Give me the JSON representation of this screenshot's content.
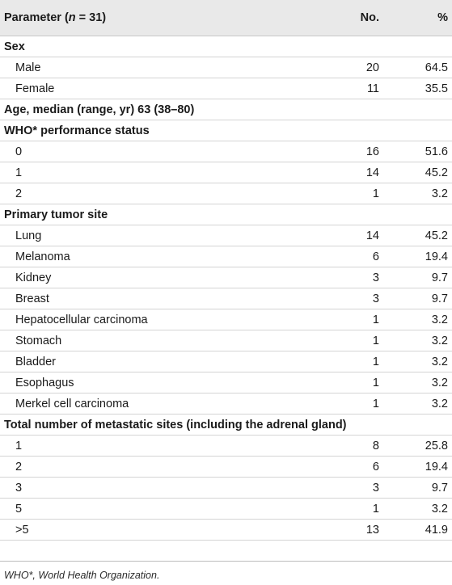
{
  "header": {
    "param_prefix": "Parameter (",
    "param_n": "n",
    "param_suffix": " = 31)",
    "no": "No.",
    "pct": "%"
  },
  "rows": [
    {
      "type": "section",
      "label": "Sex",
      "no": "",
      "pct": ""
    },
    {
      "type": "item",
      "label": "Male",
      "no": "20",
      "pct": "64.5"
    },
    {
      "type": "item",
      "label": "Female",
      "no": "11",
      "pct": "35.5"
    },
    {
      "type": "section",
      "label": "Age, median (range, yr) 63 (38–80)",
      "no": "",
      "pct": ""
    },
    {
      "type": "section",
      "label": "WHO* performance status",
      "no": "",
      "pct": ""
    },
    {
      "type": "item",
      "label": "0",
      "no": "16",
      "pct": "51.6"
    },
    {
      "type": "item",
      "label": "1",
      "no": "14",
      "pct": "45.2"
    },
    {
      "type": "item",
      "label": "2",
      "no": "1",
      "pct": "3.2"
    },
    {
      "type": "section",
      "label": "Primary tumor site",
      "no": "",
      "pct": ""
    },
    {
      "type": "item",
      "label": "Lung",
      "no": "14",
      "pct": "45.2"
    },
    {
      "type": "item",
      "label": "Melanoma",
      "no": "6",
      "pct": "19.4"
    },
    {
      "type": "item",
      "label": "Kidney",
      "no": "3",
      "pct": "9.7"
    },
    {
      "type": "item",
      "label": "Breast",
      "no": "3",
      "pct": "9.7"
    },
    {
      "type": "item",
      "label": "Hepatocellular carcinoma",
      "no": "1",
      "pct": "3.2"
    },
    {
      "type": "item",
      "label": "Stomach",
      "no": "1",
      "pct": "3.2"
    },
    {
      "type": "item",
      "label": "Bladder",
      "no": "1",
      "pct": "3.2"
    },
    {
      "type": "item",
      "label": "Esophagus",
      "no": "1",
      "pct": "3.2"
    },
    {
      "type": "item",
      "label": "Merkel cell carcinoma",
      "no": "1",
      "pct": "3.2"
    },
    {
      "type": "section",
      "label": "Total number of metastatic sites (including the adrenal gland)",
      "no": "",
      "pct": ""
    },
    {
      "type": "item",
      "label": "1",
      "no": "8",
      "pct": "25.8"
    },
    {
      "type": "item",
      "label": "2",
      "no": "6",
      "pct": "19.4"
    },
    {
      "type": "item",
      "label": "3",
      "no": "3",
      "pct": "9.7"
    },
    {
      "type": "item",
      "label": "5",
      "no": "1",
      "pct": "3.2"
    },
    {
      "type": "item",
      "label": ">5",
      "no": "13",
      "pct": "41.9"
    }
  ],
  "footnote": "WHO*, World Health Organization."
}
